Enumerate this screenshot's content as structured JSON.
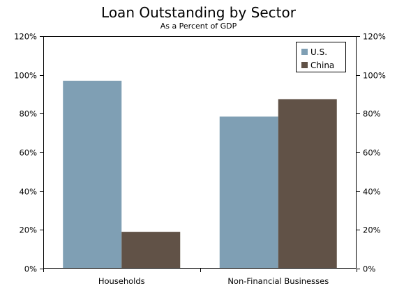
{
  "chart_data": {
    "type": "bar",
    "title": "Loan Outstanding by Sector",
    "subtitle": "As a Percent of GDP",
    "categories": [
      "Households",
      "Non-Financial Businesses"
    ],
    "series": [
      {
        "name": "U.S.",
        "values": [
          97,
          78.5
        ],
        "color": "#7f9fb4"
      },
      {
        "name": "China",
        "values": [
          19,
          87.5
        ],
        "color": "#615247"
      }
    ],
    "ylim": [
      0,
      120
    ],
    "yticks": [
      0,
      20,
      40,
      60,
      80,
      100,
      120
    ],
    "tick_format": "percent",
    "grid": false,
    "legend_position": "top-right",
    "secondary_axis": "mirrored on right"
  }
}
